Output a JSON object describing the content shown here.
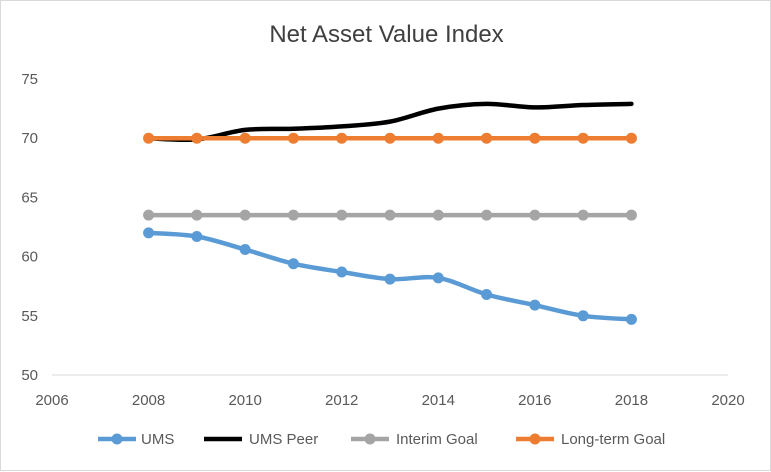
{
  "chart_data": {
    "type": "line",
    "title": "Net Asset Value Index",
    "xlabel": "",
    "ylabel": "",
    "xlim": [
      2006,
      2020
    ],
    "ylim": [
      50,
      75
    ],
    "x_ticks": [
      2006,
      2008,
      2010,
      2012,
      2014,
      2016,
      2018,
      2020
    ],
    "y_ticks": [
      50,
      55,
      60,
      65,
      70,
      75
    ],
    "grid": false,
    "legend_position": "bottom",
    "x": [
      2008,
      2009,
      2010,
      2011,
      2012,
      2013,
      2014,
      2015,
      2016,
      2017,
      2018
    ],
    "series": [
      {
        "name": "UMS",
        "color": "#5b9bd5",
        "markers": true,
        "values": [
          62.0,
          61.7,
          60.6,
          59.4,
          58.7,
          58.1,
          58.2,
          56.8,
          55.9,
          55.0,
          54.7
        ]
      },
      {
        "name": "UMS Peer",
        "color": "#000000",
        "markers": false,
        "values": [
          70.0,
          69.9,
          70.7,
          70.8,
          71.0,
          71.4,
          72.5,
          72.9,
          72.6,
          72.8,
          72.9
        ]
      },
      {
        "name": "Interim Goal",
        "color": "#a5a5a5",
        "markers": true,
        "values": [
          63.5,
          63.5,
          63.5,
          63.5,
          63.5,
          63.5,
          63.5,
          63.5,
          63.5,
          63.5,
          63.5
        ]
      },
      {
        "name": "Long-term Goal",
        "color": "#ed7d31",
        "markers": true,
        "values": [
          70.0,
          70.0,
          70.0,
          70.0,
          70.0,
          70.0,
          70.0,
          70.0,
          70.0,
          70.0,
          70.0
        ]
      }
    ]
  }
}
